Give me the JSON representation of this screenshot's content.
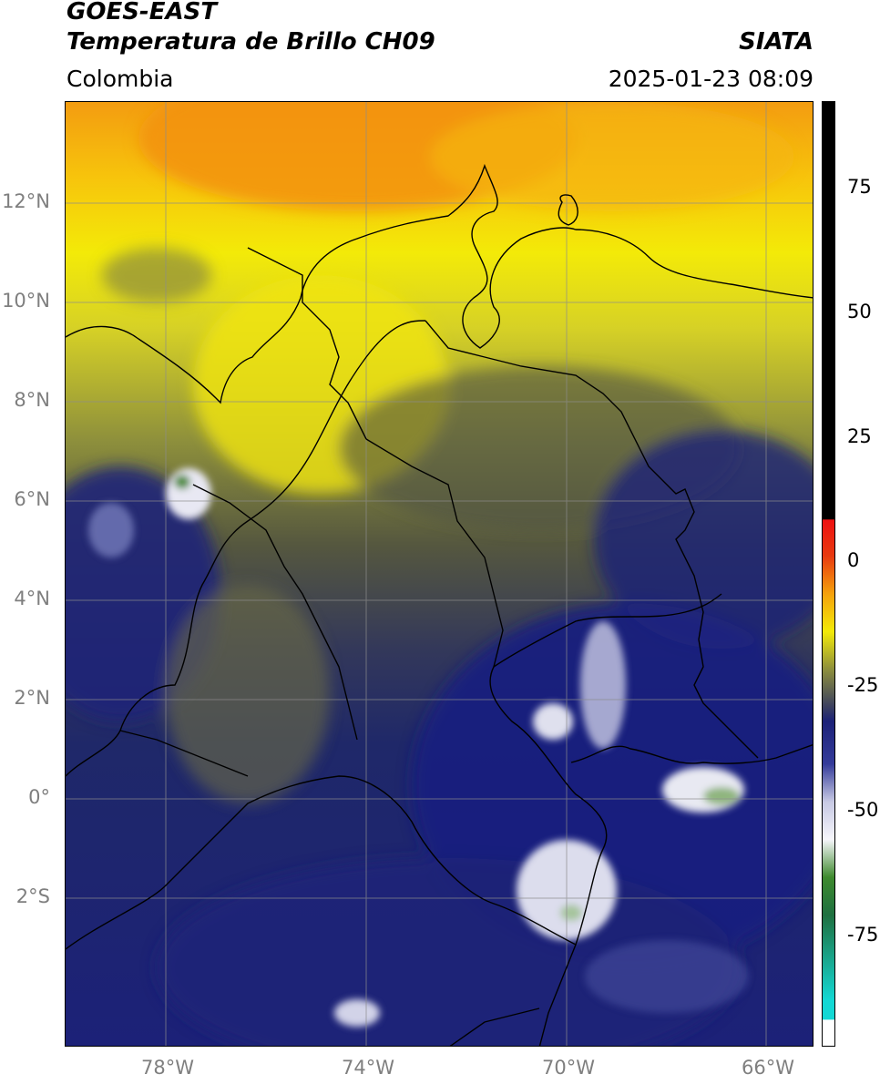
{
  "header": {
    "satellite": "GOES-EAST",
    "product": "Temperatura de Brillo CH09",
    "region": "Colombia",
    "organization": "SIATA",
    "timestamp": "2025-01-23 08:09"
  },
  "map": {
    "type": "satellite-brightness-temperature",
    "lon_range": [
      -80,
      -65
    ],
    "lat_range": [
      -5,
      14
    ],
    "gridlines": true,
    "lat_ticks": [
      {
        "value": 12,
        "label": "12°N"
      },
      {
        "value": 10,
        "label": "10°N"
      },
      {
        "value": 8,
        "label": "8°N"
      },
      {
        "value": 6,
        "label": "6°N"
      },
      {
        "value": 4,
        "label": "4°N"
      },
      {
        "value": 2,
        "label": "2°N"
      },
      {
        "value": 0,
        "label": "0°"
      },
      {
        "value": -2,
        "label": "2°S"
      }
    ],
    "lon_ticks": [
      {
        "value": -78,
        "label": "78°W"
      },
      {
        "value": -74,
        "label": "74°W"
      },
      {
        "value": -70,
        "label": "70°W"
      },
      {
        "value": -66,
        "label": "66°W"
      }
    ]
  },
  "colorbar": {
    "range": [
      -95,
      90
    ],
    "ticks": [
      {
        "value": 75,
        "label": "75"
      },
      {
        "value": 50,
        "label": "50"
      },
      {
        "value": 25,
        "label": "25"
      },
      {
        "value": 0,
        "label": "0"
      },
      {
        "value": -25,
        "label": "-25"
      },
      {
        "value": -50,
        "label": "-50"
      },
      {
        "value": -75,
        "label": "-75"
      }
    ],
    "colors": {
      "black": "#000000",
      "red": "#ee1111",
      "orange": "#f39c10",
      "yellow": "#f3ea08",
      "olive": "#8d8f3c",
      "grey_blue": "#3a3f60",
      "navy": "#1c2178",
      "white": "#f6f6fb",
      "green": "#3e8a2e",
      "cyan": "#13d8d4"
    }
  }
}
